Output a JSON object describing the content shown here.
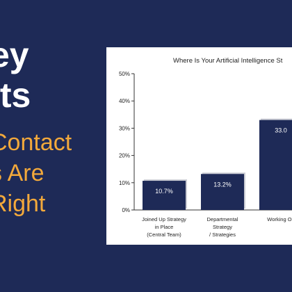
{
  "headline": {
    "line0": "ey",
    "line1": "lts",
    "line2": "Contact",
    "line3": "s Are",
    "line4": "Right"
  },
  "colors": {
    "background": "#1e2a57",
    "heading": "#ffffff",
    "accent": "#f3a93b",
    "bar": "#1e2a57",
    "bar_shadow": "#c9cbd3"
  },
  "chart_data": {
    "type": "bar",
    "title": "Where Is Your Artificial Intelligence St",
    "categories": [
      [
        "Joined Up Strategy",
        "in Place",
        "(Central Team)"
      ],
      [
        "Departmental",
        "Strategy",
        "/ Strategies"
      ],
      [
        "Working On"
      ]
    ],
    "values": [
      10.7,
      13.2,
      33.0
    ],
    "value_labels": [
      "10.7%",
      "13.2%",
      "33.0"
    ],
    "y_ticks": [
      "0%",
      "10%",
      "20%",
      "30%",
      "40%",
      "50%"
    ],
    "ylim": [
      0,
      50
    ],
    "grid": false,
    "legend": "none"
  }
}
